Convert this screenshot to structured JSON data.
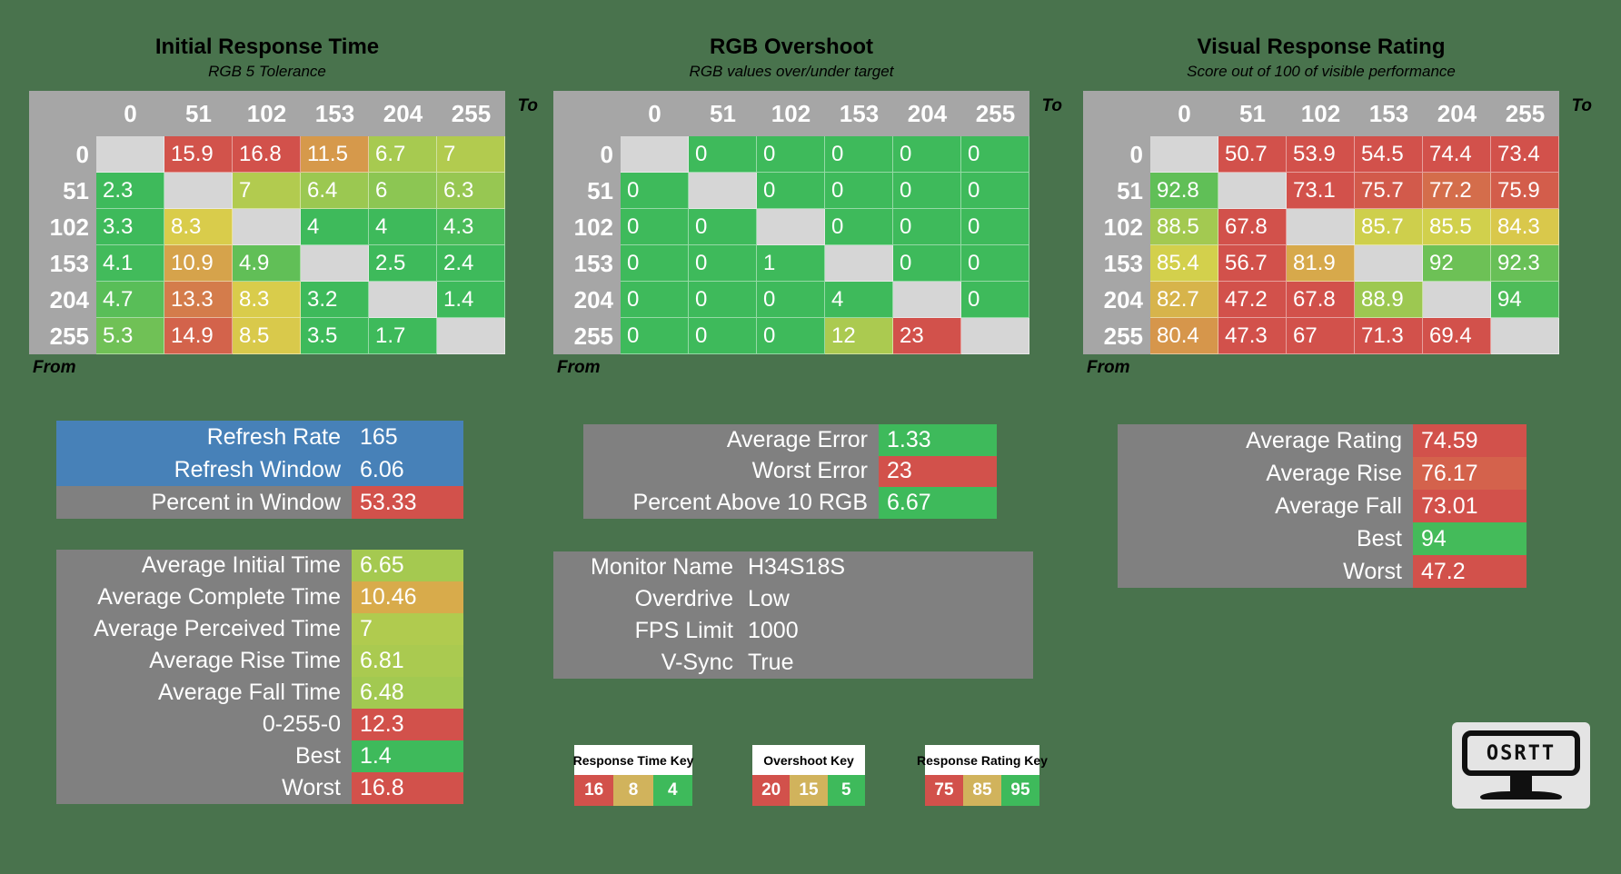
{
  "palette": {
    "background": "#49734d",
    "table_header": "#a6a6a6",
    "diagonal": "#d6d6d6",
    "panel": "#808080",
    "blue": "#4781b8",
    "green": "#3eba5b",
    "yellow": "#d9d14b",
    "red": "#d2514b",
    "key_amber": "#d1b35c"
  },
  "tables": [
    {
      "title": "Initial Response Time",
      "subtitle": "RGB 5 Tolerance",
      "axis_to": "To",
      "axis_from": "From",
      "col_headers": [
        "0",
        "51",
        "102",
        "153",
        "204",
        "255"
      ],
      "row_headers": [
        "0",
        "51",
        "102",
        "153",
        "204",
        "255"
      ],
      "rows": [
        [
          null,
          "15.9",
          "16.8",
          "11.5",
          "6.7",
          "7"
        ],
        [
          "2.3",
          null,
          "7",
          "6.4",
          "6",
          "6.3"
        ],
        [
          "3.3",
          "8.3",
          null,
          "4",
          "4",
          "4.3"
        ],
        [
          "4.1",
          "10.9",
          "4.9",
          null,
          "2.5",
          "2.4"
        ],
        [
          "4.7",
          "13.3",
          "8.3",
          "3.2",
          null,
          "1.4"
        ],
        [
          "5.3",
          "14.9",
          "8.5",
          "3.5",
          "1.7",
          null
        ]
      ],
      "scale": {
        "green": 4,
        "yellow": 8,
        "red": 16
      }
    },
    {
      "title": "RGB Overshoot",
      "subtitle": "RGB values over/under target",
      "axis_to": "To",
      "axis_from": "From",
      "col_headers": [
        "0",
        "51",
        "102",
        "153",
        "204",
        "255"
      ],
      "row_headers": [
        "0",
        "51",
        "102",
        "153",
        "204",
        "255"
      ],
      "rows": [
        [
          null,
          "0",
          "0",
          "0",
          "0",
          "0"
        ],
        [
          "0",
          null,
          "0",
          "0",
          "0",
          "0"
        ],
        [
          "0",
          "0",
          null,
          "0",
          "0",
          "0"
        ],
        [
          "0",
          "0",
          "1",
          null,
          "0",
          "0"
        ],
        [
          "0",
          "0",
          "0",
          "4",
          null,
          "0"
        ],
        [
          "0",
          "0",
          "0",
          "12",
          "23",
          null
        ]
      ],
      "scale": {
        "green": 5,
        "yellow": 15,
        "red": 20
      }
    },
    {
      "title": "Visual Response Rating",
      "subtitle": "Score out of 100 of visible performance",
      "axis_to": "To",
      "axis_from": "From",
      "col_headers": [
        "0",
        "51",
        "102",
        "153",
        "204",
        "255"
      ],
      "row_headers": [
        "0",
        "51",
        "102",
        "153",
        "204",
        "255"
      ],
      "rows": [
        [
          null,
          "50.7",
          "53.9",
          "54.5",
          "74.4",
          "73.4"
        ],
        [
          "92.8",
          null,
          "73.1",
          "75.7",
          "77.2",
          "75.9"
        ],
        [
          "88.5",
          "67.8",
          null,
          "85.7",
          "85.5",
          "84.3"
        ],
        [
          "85.4",
          "56.7",
          "81.9",
          null,
          "92",
          "92.3"
        ],
        [
          "82.7",
          "47.2",
          "67.8",
          "88.9",
          null,
          "94"
        ],
        [
          "80.4",
          "47.3",
          "67",
          "71.3",
          "69.4",
          null
        ]
      ],
      "scale": {
        "green": 95,
        "yellow": 85,
        "red": 75
      }
    }
  ],
  "stat_boxes": {
    "refresh": {
      "rows": [
        {
          "label": "Refresh Rate",
          "value": "165",
          "row_bg": "#4781b8",
          "value_bg": null
        },
        {
          "label": "Refresh Window",
          "value": "6.06",
          "row_bg": "#4781b8",
          "value_bg": null
        },
        {
          "label": "Percent in Window",
          "value": "53.33",
          "row_bg": "#808080",
          "value_bg": "#d2514b"
        }
      ]
    },
    "times": {
      "bg": "#808080",
      "rows": [
        {
          "label": "Average Initial Time",
          "value": "6.65",
          "value_bg": "#a5c950"
        },
        {
          "label": "Average Complete Time",
          "value": "10.46",
          "value_bg": "#d8ab4b"
        },
        {
          "label": "Average Perceived Time",
          "value": "7",
          "value_bg": "#b0cb4f"
        },
        {
          "label": "Average Rise Time",
          "value": "6.81",
          "value_bg": "#aaca50"
        },
        {
          "label": "Average Fall Time",
          "value": "6.48",
          "value_bg": "#a2c951"
        },
        {
          "label": "0-255-0",
          "value": "12.3",
          "value_bg": "#d2514b"
        },
        {
          "label": "Best",
          "value": "1.4",
          "value_bg": "#3eba5b"
        },
        {
          "label": "Worst",
          "value": "16.8",
          "value_bg": "#d2514b"
        }
      ]
    },
    "error": {
      "bg": "#808080",
      "rows": [
        {
          "label": "Average Error",
          "value": "1.33",
          "value_bg": "#3eba5b"
        },
        {
          "label": "Worst Error",
          "value": "23",
          "value_bg": "#d2514b"
        },
        {
          "label": "Percent Above 10 RGB",
          "value": "6.67",
          "value_bg": "#3eba5b"
        }
      ]
    },
    "monitor": {
      "bg": "#808080",
      "rows": [
        {
          "label": "Monitor Name",
          "value": "H34S18S"
        },
        {
          "label": "Overdrive",
          "value": "Low"
        },
        {
          "label": "FPS Limit",
          "value": "1000"
        },
        {
          "label": "V-Sync",
          "value": "True"
        }
      ]
    },
    "rating": {
      "bg": "#808080",
      "rows": [
        {
          "label": "Average Rating",
          "value": "74.59",
          "value_bg": "#d2514b"
        },
        {
          "label": "Average Rise",
          "value": "76.17",
          "value_bg": "#d4624c"
        },
        {
          "label": "Average Fall",
          "value": "73.01",
          "value_bg": "#d2514b"
        },
        {
          "label": "Best",
          "value": "94",
          "value_bg": "#44bb5a"
        },
        {
          "label": "Worst",
          "value": "47.2",
          "value_bg": "#d2514b"
        }
      ]
    }
  },
  "keys": [
    {
      "title": "Response Time Key",
      "cells": [
        {
          "value": "16",
          "color": "#d2514b"
        },
        {
          "value": "8",
          "color": "#d1b35c"
        },
        {
          "value": "4",
          "color": "#3eba5b"
        }
      ]
    },
    {
      "title": "Overshoot Key",
      "cells": [
        {
          "value": "20",
          "color": "#d2514b"
        },
        {
          "value": "15",
          "color": "#d1b35c"
        },
        {
          "value": "5",
          "color": "#3eba5b"
        }
      ]
    },
    {
      "title": "Response Rating Key",
      "cells": [
        {
          "value": "75",
          "color": "#d2514b"
        },
        {
          "value": "85",
          "color": "#d1b35c"
        },
        {
          "value": "95",
          "color": "#3eba5b"
        }
      ]
    }
  ],
  "logo": {
    "text": "OSRTT"
  }
}
